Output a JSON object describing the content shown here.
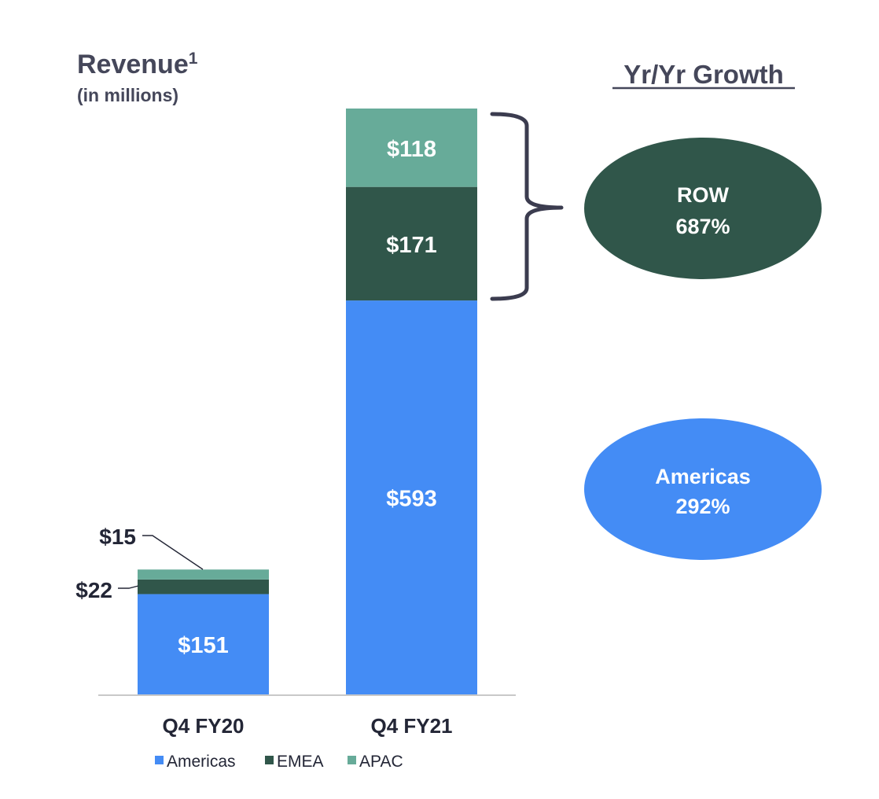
{
  "colors": {
    "americas": "#448cf5",
    "emea": "#30564a",
    "apac": "#67ab99",
    "text_dark": "#232636",
    "title": "#45475a",
    "bracket": "#3b3c4f",
    "axis": "#c8c8c8"
  },
  "chart_data": {
    "type": "bar",
    "stacked": true,
    "title": "Revenue",
    "title_superscript": "1",
    "subtitle": "(in millions)",
    "categories": [
      "Q4 FY20",
      "Q4 FY21"
    ],
    "series": [
      {
        "name": "Americas",
        "values": [
          151,
          593
        ],
        "labels": [
          "$151",
          "$593"
        ],
        "color_key": "americas"
      },
      {
        "name": "EMEA",
        "values": [
          22,
          171
        ],
        "labels": [
          "$22",
          "$171"
        ],
        "color_key": "emea"
      },
      {
        "name": "APAC",
        "values": [
          15,
          118
        ],
        "labels": [
          "$15",
          "$118"
        ],
        "color_key": "apac"
      }
    ],
    "ylim": [
      0,
      882
    ],
    "grid": false,
    "legend_position": "bottom-center"
  },
  "growth": {
    "title": "Yr/Yr Growth",
    "row": {
      "label": "ROW",
      "value": "687%"
    },
    "americas": {
      "label": "Americas",
      "value": "292%"
    }
  }
}
